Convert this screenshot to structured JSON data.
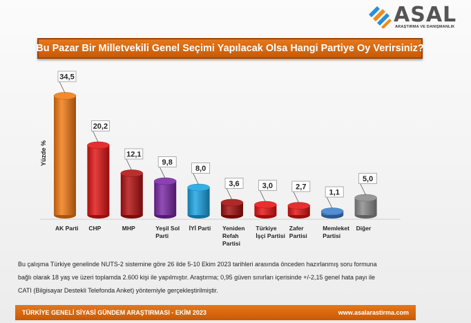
{
  "logo": {
    "text": "ASAL",
    "subtitle": "ARAŞTIRMA VE DANIŞMANLIK",
    "colors": {
      "blue": "#2a8fd8",
      "orange": "#f08a1c",
      "gray": "#555555"
    }
  },
  "title": "Bu Pazar Bir Milletvekili Genel Seçimi Yapılacak Olsa Hangi Partiye Oy Verirsiniz?",
  "chart_data": {
    "type": "bar",
    "title": "Bu Pazar Bir Milletvekili Genel Seçimi Yapılacak Olsa Hangi Partiye Oy Verirsiniz?",
    "ylabel": "Yüzde %",
    "xlabel": "",
    "ylim": [
      0,
      40
    ],
    "grid": false,
    "legend": "none",
    "categories": [
      [
        "AK Parti"
      ],
      [
        "CHP"
      ],
      [
        "MHP"
      ],
      [
        "Yeşil Sol",
        "Parti"
      ],
      [
        "İYİ Parti"
      ],
      [
        "Yeniden",
        "Refah",
        "Partisi"
      ],
      [
        "Türkiye",
        "İşçi Partisi"
      ],
      [
        "Zafer",
        "Partisi"
      ],
      [
        "Memleket",
        "Partisi"
      ],
      [
        "Diğer"
      ]
    ],
    "values": [
      34.5,
      20.2,
      12.1,
      9.8,
      8.0,
      3.6,
      3.0,
      2.7,
      1.1,
      5.0
    ],
    "value_labels": [
      "34,5",
      "20,2",
      "12,1",
      "9,8",
      "8,0",
      "3,6",
      "3,0",
      "2,7",
      "1,1",
      "5,0"
    ],
    "colors": [
      "#f27a12",
      "#e11414",
      "#b50f0f",
      "#7a27a6",
      "#1aa3e3",
      "#a30d0d",
      "#e81212",
      "#e01414",
      "#3c7fce",
      "#8a8a8a"
    ]
  },
  "footnote": [
    "Bu çalışma Türkiye genelinde NUTS-2 sistemine göre 26 ilde 5-10 Ekim 2023 tarihleri arasında önceden hazırlanmış soru formuna",
    "bağlı olarak 18 yaş ve üzeri toplamda 2.600 kişi ile yapılmıştır. Araştırma; 0,95 güven sınırları içerisinde +/-2,15 genel hata payı ile",
    "CATI (Bilgisayar Destekli Telefonda Anket) yöntemiyle gerçekleştirilmiştir."
  ],
  "footer": {
    "left": "TÜRKİYE GENELİ SİYASİ GÜNDEM ARAŞTIRMASI -  EKİM 2023",
    "right": "www.asalarastirma.com"
  }
}
